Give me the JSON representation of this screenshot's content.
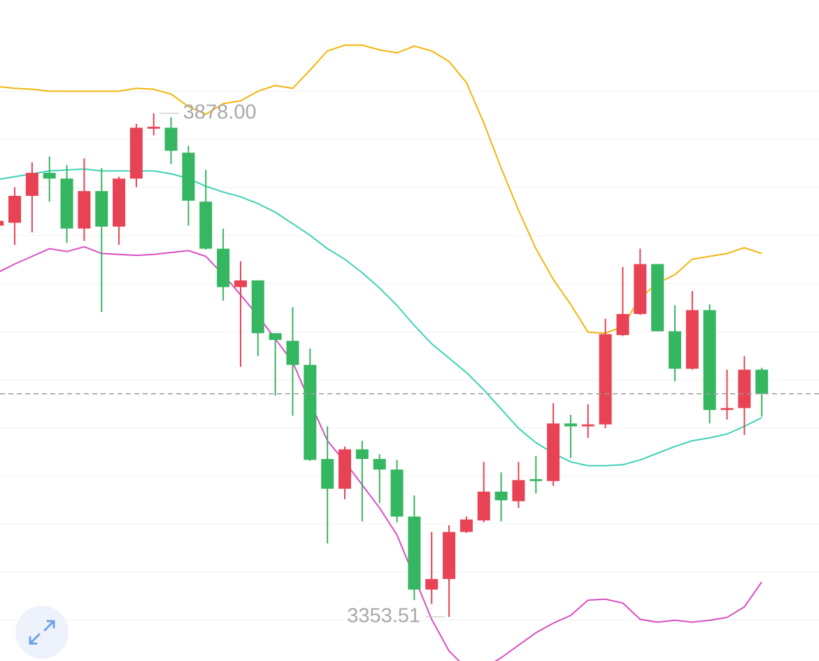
{
  "chart_data": {
    "type": "candlestick",
    "ylim": [
      3307.6,
      3996
    ],
    "up_color": "#e84354",
    "down_color": "#35b660",
    "open": [
      3761,
      3764,
      3792,
      3816,
      3810,
      3758,
      3797,
      3760,
      3810,
      3862,
      3863,
      3837,
      3786,
      3737,
      3697,
      3704,
      3649,
      3641,
      3616,
      3518,
      3487,
      3528,
      3518,
      3507,
      3458,
      3382,
      3393,
      3442,
      3454,
      3484,
      3474,
      3497,
      3495,
      3555,
      3552,
      3554,
      3647,
      3669,
      3721,
      3651,
      3612,
      3673,
      3569,
      3571,
      3611
    ],
    "high": [
      3770,
      3801,
      3827,
      3833,
      3824,
      3831,
      3821,
      3812,
      3867,
      3878,
      3874,
      3844,
      3819,
      3758,
      3724,
      3704,
      3649,
      3676,
      3633,
      3552,
      3531,
      3537,
      3523,
      3517,
      3480,
      3442,
      3449,
      3458,
      3515,
      3504,
      3515,
      3521,
      3576,
      3564,
      3575,
      3664,
      3718,
      3737,
      3721,
      3678,
      3693,
      3679,
      3611,
      3625,
      3613
    ],
    "low": [
      3756,
      3741,
      3754,
      3786,
      3743,
      3745,
      3671,
      3741,
      3801,
      3855,
      3825,
      3761,
      3736,
      3683,
      3614,
      3625,
      3584,
      3563,
      3516,
      3430,
      3476,
      3453,
      3472,
      3452,
      3371,
      3367,
      3353.51,
      3441,
      3452,
      3453,
      3467,
      3482,
      3490,
      3519,
      3540,
      3550,
      3646,
      3668,
      3651,
      3599,
      3611,
      3555,
      3559,
      3543,
      3562
    ],
    "close": [
      3766,
      3792,
      3816,
      3810,
      3758,
      3797,
      3760,
      3810,
      3863,
      3864,
      3839,
      3787,
      3737,
      3697,
      3704,
      3649,
      3642,
      3616,
      3517,
      3487,
      3528,
      3518,
      3507,
      3458,
      3382,
      3393,
      3442,
      3455,
      3484,
      3475,
      3496,
      3495,
      3555,
      3552,
      3554,
      3648,
      3669,
      3721,
      3651,
      3612,
      3673,
      3569,
      3571,
      3611,
      3586
    ],
    "series": [
      {
        "color": "#f2b50c",
        "values": [
          3906,
          3904,
          3903,
          3901,
          3901,
          3901,
          3901,
          3901,
          3904,
          3903,
          3898,
          3885,
          3877,
          3888,
          3891,
          3901,
          3907,
          3904,
          3923,
          3943,
          3949,
          3949,
          3944,
          3941,
          3948,
          3943,
          3932,
          3910,
          3868,
          3821,
          3777,
          3737,
          3705,
          3679,
          3650,
          3649,
          3656,
          3686,
          3701,
          3710,
          3726,
          3729,
          3732,
          3738,
          3732
        ]
      },
      {
        "color": "#3dd2b5",
        "values": [
          3809,
          3812,
          3815,
          3818,
          3819,
          3820,
          3818,
          3818,
          3818,
          3818,
          3815,
          3810,
          3802,
          3796,
          3791,
          3784,
          3775,
          3763,
          3751,
          3737,
          3726,
          3712,
          3696,
          3678,
          3657,
          3638,
          3623,
          3608,
          3590,
          3570,
          3550,
          3535,
          3524,
          3515,
          3511,
          3511,
          3512,
          3517,
          3524,
          3531,
          3537,
          3540,
          3544,
          3552,
          3561
        ]
      },
      {
        "color": "#d94fc3",
        "values": [
          3712,
          3721,
          3729,
          3737,
          3734,
          3739,
          3732,
          3731,
          3730,
          3731,
          3733,
          3735,
          3729,
          3710,
          3689,
          3667,
          3643,
          3619,
          3577,
          3537,
          3515,
          3491,
          3467,
          3439,
          3395,
          3351,
          3318,
          3300,
          3300,
          3311,
          3324,
          3337,
          3347,
          3355,
          3371,
          3372,
          3368,
          3351,
          3348,
          3350,
          3348,
          3350,
          3353,
          3364,
          3390
        ]
      }
    ],
    "high_label": "3878.00",
    "low_label": "3353.51"
  }
}
